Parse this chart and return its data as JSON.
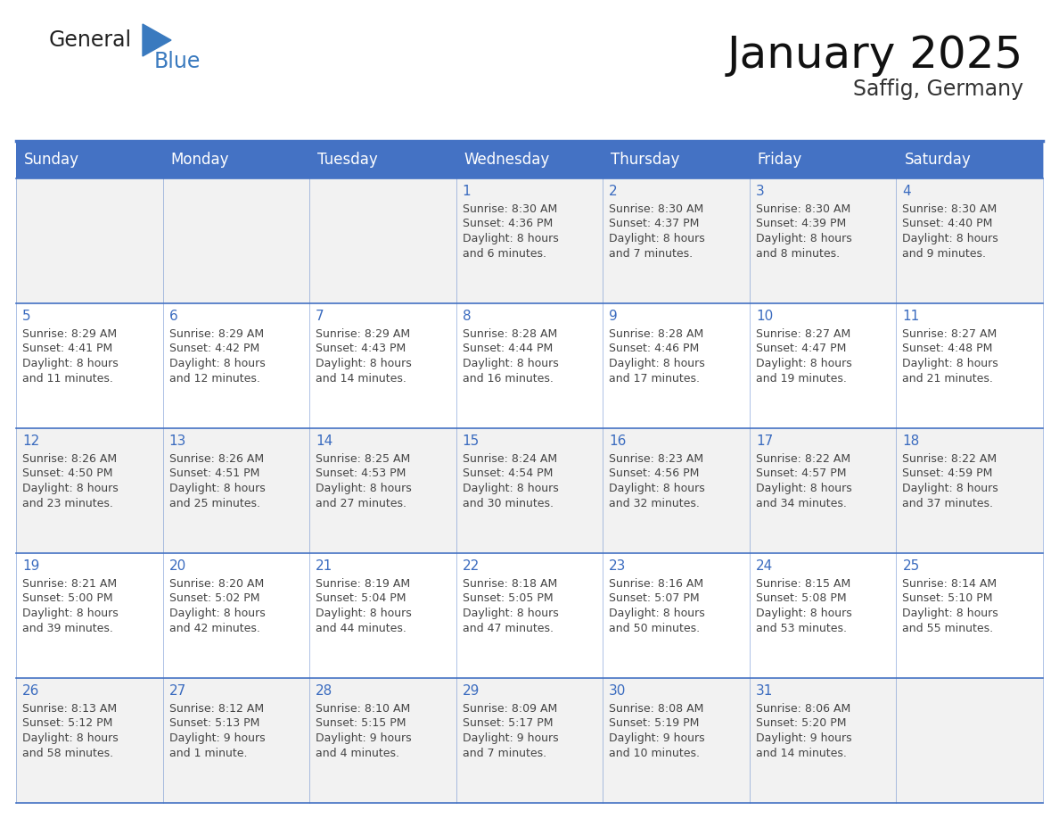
{
  "title": "January 2025",
  "subtitle": "Saffig, Germany",
  "days_of_week": [
    "Sunday",
    "Monday",
    "Tuesday",
    "Wednesday",
    "Thursday",
    "Friday",
    "Saturday"
  ],
  "header_bg": "#4472c4",
  "header_text": "#ffffff",
  "cell_bg_odd": "#f2f2f2",
  "cell_bg_even": "#ffffff",
  "day_number_color": "#3a6bbf",
  "text_color": "#444444",
  "border_color": "#4472c4",
  "logo_text_color": "#222222",
  "logo_blue_color": "#3a7abf",
  "calendar_data": [
    [
      null,
      null,
      null,
      {
        "day": 1,
        "sunrise": "8:30 AM",
        "sunset": "4:36 PM",
        "daylight": "8 hours and 6 minutes."
      },
      {
        "day": 2,
        "sunrise": "8:30 AM",
        "sunset": "4:37 PM",
        "daylight": "8 hours and 7 minutes."
      },
      {
        "day": 3,
        "sunrise": "8:30 AM",
        "sunset": "4:39 PM",
        "daylight": "8 hours and 8 minutes."
      },
      {
        "day": 4,
        "sunrise": "8:30 AM",
        "sunset": "4:40 PM",
        "daylight": "8 hours and 9 minutes."
      }
    ],
    [
      {
        "day": 5,
        "sunrise": "8:29 AM",
        "sunset": "4:41 PM",
        "daylight": "8 hours and 11 minutes."
      },
      {
        "day": 6,
        "sunrise": "8:29 AM",
        "sunset": "4:42 PM",
        "daylight": "8 hours and 12 minutes."
      },
      {
        "day": 7,
        "sunrise": "8:29 AM",
        "sunset": "4:43 PM",
        "daylight": "8 hours and 14 minutes."
      },
      {
        "day": 8,
        "sunrise": "8:28 AM",
        "sunset": "4:44 PM",
        "daylight": "8 hours and 16 minutes."
      },
      {
        "day": 9,
        "sunrise": "8:28 AM",
        "sunset": "4:46 PM",
        "daylight": "8 hours and 17 minutes."
      },
      {
        "day": 10,
        "sunrise": "8:27 AM",
        "sunset": "4:47 PM",
        "daylight": "8 hours and 19 minutes."
      },
      {
        "day": 11,
        "sunrise": "8:27 AM",
        "sunset": "4:48 PM",
        "daylight": "8 hours and 21 minutes."
      }
    ],
    [
      {
        "day": 12,
        "sunrise": "8:26 AM",
        "sunset": "4:50 PM",
        "daylight": "8 hours and 23 minutes."
      },
      {
        "day": 13,
        "sunrise": "8:26 AM",
        "sunset": "4:51 PM",
        "daylight": "8 hours and 25 minutes."
      },
      {
        "day": 14,
        "sunrise": "8:25 AM",
        "sunset": "4:53 PM",
        "daylight": "8 hours and 27 minutes."
      },
      {
        "day": 15,
        "sunrise": "8:24 AM",
        "sunset": "4:54 PM",
        "daylight": "8 hours and 30 minutes."
      },
      {
        "day": 16,
        "sunrise": "8:23 AM",
        "sunset": "4:56 PM",
        "daylight": "8 hours and 32 minutes."
      },
      {
        "day": 17,
        "sunrise": "8:22 AM",
        "sunset": "4:57 PM",
        "daylight": "8 hours and 34 minutes."
      },
      {
        "day": 18,
        "sunrise": "8:22 AM",
        "sunset": "4:59 PM",
        "daylight": "8 hours and 37 minutes."
      }
    ],
    [
      {
        "day": 19,
        "sunrise": "8:21 AM",
        "sunset": "5:00 PM",
        "daylight": "8 hours and 39 minutes."
      },
      {
        "day": 20,
        "sunrise": "8:20 AM",
        "sunset": "5:02 PM",
        "daylight": "8 hours and 42 minutes."
      },
      {
        "day": 21,
        "sunrise": "8:19 AM",
        "sunset": "5:04 PM",
        "daylight": "8 hours and 44 minutes."
      },
      {
        "day": 22,
        "sunrise": "8:18 AM",
        "sunset": "5:05 PM",
        "daylight": "8 hours and 47 minutes."
      },
      {
        "day": 23,
        "sunrise": "8:16 AM",
        "sunset": "5:07 PM",
        "daylight": "8 hours and 50 minutes."
      },
      {
        "day": 24,
        "sunrise": "8:15 AM",
        "sunset": "5:08 PM",
        "daylight": "8 hours and 53 minutes."
      },
      {
        "day": 25,
        "sunrise": "8:14 AM",
        "sunset": "5:10 PM",
        "daylight": "8 hours and 55 minutes."
      }
    ],
    [
      {
        "day": 26,
        "sunrise": "8:13 AM",
        "sunset": "5:12 PM",
        "daylight": "8 hours and 58 minutes."
      },
      {
        "day": 27,
        "sunrise": "8:12 AM",
        "sunset": "5:13 PM",
        "daylight": "9 hours and 1 minute."
      },
      {
        "day": 28,
        "sunrise": "8:10 AM",
        "sunset": "5:15 PM",
        "daylight": "9 hours and 4 minutes."
      },
      {
        "day": 29,
        "sunrise": "8:09 AM",
        "sunset": "5:17 PM",
        "daylight": "9 hours and 7 minutes."
      },
      {
        "day": 30,
        "sunrise": "8:08 AM",
        "sunset": "5:19 PM",
        "daylight": "9 hours and 10 minutes."
      },
      {
        "day": 31,
        "sunrise": "8:06 AM",
        "sunset": "5:20 PM",
        "daylight": "9 hours and 14 minutes."
      },
      null
    ]
  ]
}
